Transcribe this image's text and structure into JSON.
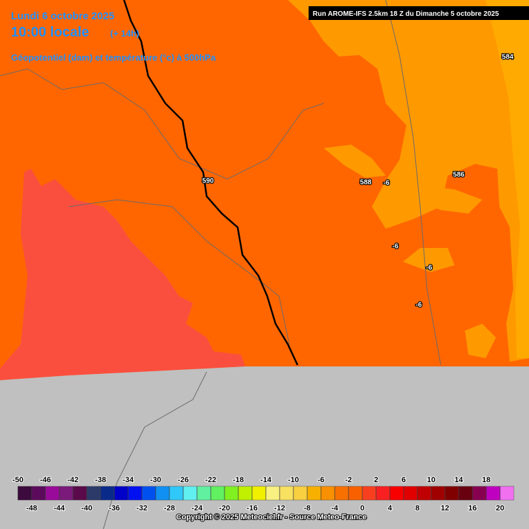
{
  "header": {
    "date": "Lundi 6 octobre 2025",
    "time": "10:00 locale",
    "lead": "(+ 14h)",
    "field": "Géopotentiel (dam) et température (°c) à 500hPa"
  },
  "run": "Run AROME-IFS 2.5km 18 Z du Dimanche 5 octobre 2025",
  "contour_labels": [
    590,
    588,
    586,
    584,
    -6,
    -6,
    -6,
    -6
  ],
  "colorbar": {
    "ticks": [
      -50,
      -48,
      -46,
      -44,
      -42,
      -40,
      -38,
      -36,
      -34,
      -32,
      -30,
      -28,
      -26,
      -24,
      -22,
      -20,
      -18,
      -16,
      -14,
      -12,
      -10,
      -8,
      -6,
      -4,
      -2,
      0,
      2,
      4,
      6,
      8,
      10,
      12,
      14,
      16,
      18,
      20
    ],
    "colors": [
      "#3c0a3c",
      "#5c0a5c",
      "#9a0a9a",
      "#7a1a7a",
      "#5a0a4a",
      "#2c3a6a",
      "#0a2a8a",
      "#0000c8",
      "#0010f0",
      "#0050f0",
      "#1090f0",
      "#30c8f8",
      "#60f0f0",
      "#60f0a0",
      "#60f060",
      "#80f020",
      "#c0f000",
      "#f0f000",
      "#f8f080",
      "#f8e060",
      "#f8d040",
      "#f8b000",
      "#f89000",
      "#f87000",
      "#f86000",
      "#f84020",
      "#f82020",
      "#f80000",
      "#e00000",
      "#c00000",
      "#a00000",
      "#800000",
      "#680010",
      "#880050",
      "#c000c0",
      "#f070f0"
    ]
  },
  "copyright": "Copyright © 2025 Meteociel.fr - Source Meteo-France"
}
